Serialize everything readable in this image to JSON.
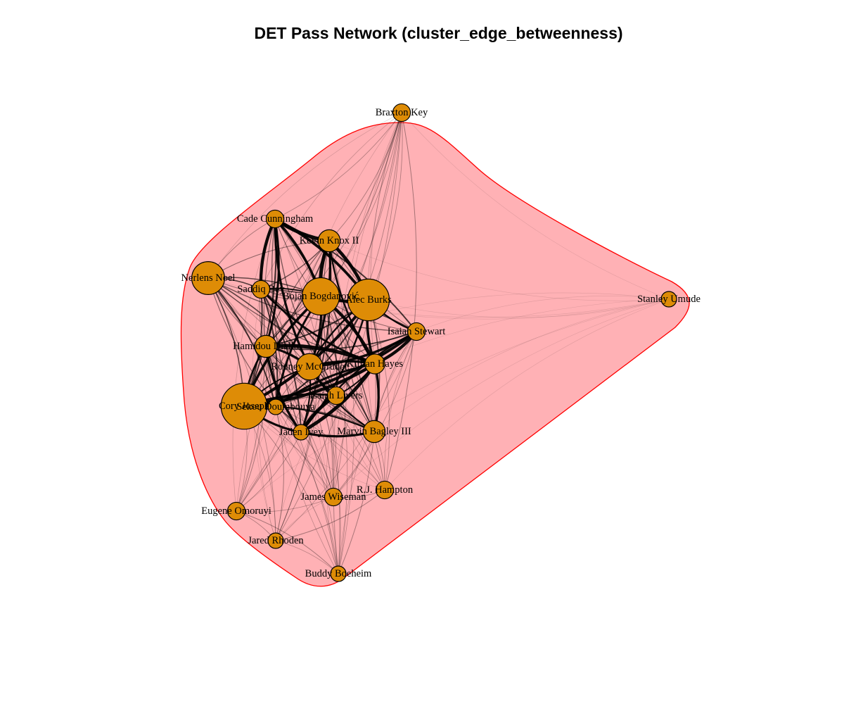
{
  "title": "DET Pass Network (cluster_edge_betweenness)",
  "colors": {
    "cluster_fill": "#ffb1b5",
    "cluster_border": "#ff0000",
    "node_fill": "#de8c06",
    "node_border": "#000000",
    "edge": "#000000"
  },
  "nodes": [
    {
      "id": "braxton",
      "label": "Braxton Key",
      "size": 1
    },
    {
      "id": "cade",
      "label": "Cade Cunningham",
      "size": 1
    },
    {
      "id": "knox",
      "label": "Kevin Knox II",
      "size": 3
    },
    {
      "id": "noel",
      "label": "Nerlens Noel",
      "size": 8
    },
    {
      "id": "saddiq",
      "label": "Saddiq Bey",
      "size": 1
    },
    {
      "id": "bogdan",
      "label": "Bojan Bogdanović",
      "size": 10
    },
    {
      "id": "burks",
      "label": "Alec Burks",
      "size": 12
    },
    {
      "id": "umude",
      "label": "Stanley Umude",
      "size": 0
    },
    {
      "id": "stewart",
      "label": "Isaiah Stewart",
      "size": 1
    },
    {
      "id": "hamidou",
      "label": "Hamidou Diallo",
      "size": 3
    },
    {
      "id": "mcgruder",
      "label": "Rodney McGruder",
      "size": 5
    },
    {
      "id": "hayes",
      "label": "Killian Hayes",
      "size": 2
    },
    {
      "id": "livers",
      "label": "Isaiah Livers",
      "size": 1
    },
    {
      "id": "joseph",
      "label": "Cory Joseph",
      "size": 14
    },
    {
      "id": "diallo2",
      "label": "Sekou Doumbouya",
      "size": 0
    },
    {
      "id": "ivey",
      "label": "Jaden Ivey",
      "size": 0
    },
    {
      "id": "bagley",
      "label": "Marvin Bagley III",
      "size": 3
    },
    {
      "id": "hampton",
      "label": "R.J. Hampton",
      "size": 1
    },
    {
      "id": "wiseman",
      "label": "James Wiseman",
      "size": 1
    },
    {
      "id": "omoruyi",
      "label": "Eugene Omoruyi",
      "size": 1
    },
    {
      "id": "rhoden",
      "label": "Jared Rhoden",
      "size": 0
    },
    {
      "id": "boeheim",
      "label": "Buddy Boeheim",
      "size": 0
    }
  ]
}
